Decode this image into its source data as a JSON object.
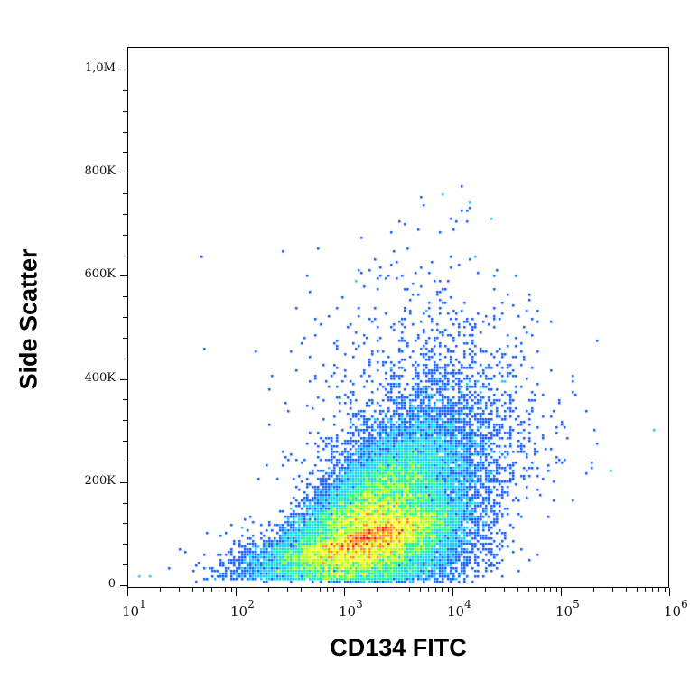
{
  "chart_data": {
    "type": "scatter",
    "subtype": "flow-cytometry-density-dot-plot",
    "title": "",
    "xlabel": "CD134 FITC",
    "ylabel": "Side Scatter",
    "x_scale": "log",
    "xlim": [
      10,
      1000000
    ],
    "x_ticks": [
      {
        "base": "10",
        "exp": "1",
        "value": 10
      },
      {
        "base": "10",
        "exp": "2",
        "value": 100
      },
      {
        "base": "10",
        "exp": "3",
        "value": 1000
      },
      {
        "base": "10",
        "exp": "4",
        "value": 10000
      },
      {
        "base": "10",
        "exp": "5",
        "value": 100000
      },
      {
        "base": "10",
        "exp": "6",
        "value": 1000000
      }
    ],
    "y_scale": "linear",
    "ylim": [
      0,
      1050000
    ],
    "y_ticks": [
      {
        "label": "0",
        "value": 0
      },
      {
        "label": "200K",
        "value": 200000
      },
      {
        "label": "400K",
        "value": 400000
      },
      {
        "label": "600K",
        "value": 600000
      },
      {
        "label": "800K",
        "value": 800000
      },
      {
        "label": "1,0M",
        "value": 1000000
      }
    ],
    "grid": false,
    "legend": null,
    "colormap": [
      "#0000c8",
      "#0050ff",
      "#00c8ff",
      "#00ff80",
      "#a0ff00",
      "#ffff00",
      "#ff8000",
      "#ff0000"
    ],
    "population": {
      "peak_x": 2500,
      "peak_y": 150000,
      "x_range_main": [
        300,
        100000
      ],
      "y_range_main": [
        20000,
        450000
      ],
      "outliers_max_y": 760000,
      "outliers_max_x": 700000,
      "approx_events": 30000
    }
  }
}
